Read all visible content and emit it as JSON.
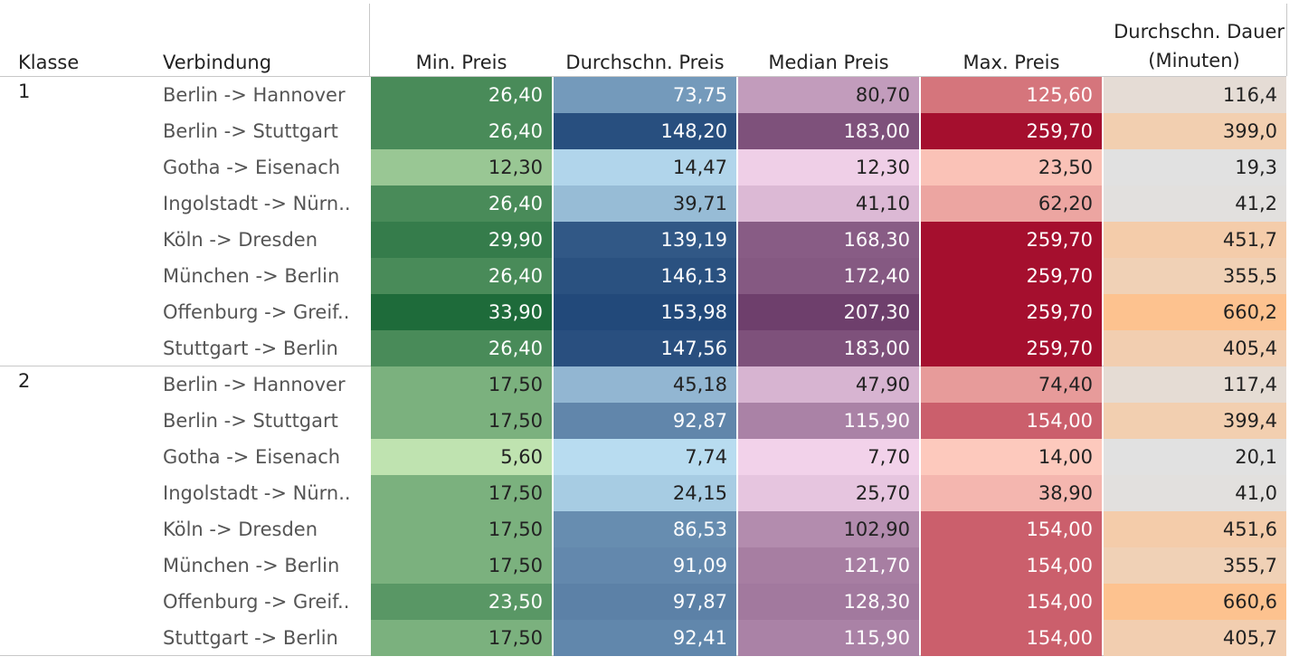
{
  "chart_data": {
    "type": "table",
    "columns": {
      "klasse": "Klasse",
      "verbindung": "Verbindung",
      "min": "Min. Preis",
      "avg": "Durchschn. Preis",
      "median": "Median Preis",
      "max": "Max. Preis",
      "dauer_line1": "Durchschn. Dauer",
      "dauer_line2": "(Minuten)"
    },
    "groups": [
      {
        "klasse": "1",
        "rows": [
          {
            "verbindung": "Berlin -> Hannover",
            "min": "26,40",
            "avg": "73,75",
            "median": "80,70",
            "max": "125,60",
            "dauer": "116,4"
          },
          {
            "verbindung": "Berlin -> Stuttgart",
            "min": "26,40",
            "avg": "148,20",
            "median": "183,00",
            "max": "259,70",
            "dauer": "399,0"
          },
          {
            "verbindung": "Gotha -> Eisenach",
            "min": "12,30",
            "avg": "14,47",
            "median": "12,30",
            "max": "23,50",
            "dauer": "19,3"
          },
          {
            "verbindung": "Ingolstadt -> Nürn..",
            "min": "26,40",
            "avg": "39,71",
            "median": "41,10",
            "max": "62,20",
            "dauer": "41,2"
          },
          {
            "verbindung": "Köln -> Dresden",
            "min": "29,90",
            "avg": "139,19",
            "median": "168,30",
            "max": "259,70",
            "dauer": "451,7"
          },
          {
            "verbindung": "München -> Berlin",
            "min": "26,40",
            "avg": "146,13",
            "median": "172,40",
            "max": "259,70",
            "dauer": "355,5"
          },
          {
            "verbindung": "Offenburg -> Greif..",
            "min": "33,90",
            "avg": "153,98",
            "median": "207,30",
            "max": "259,70",
            "dauer": "660,2"
          },
          {
            "verbindung": "Stuttgart -> Berlin",
            "min": "26,40",
            "avg": "147,56",
            "median": "183,00",
            "max": "259,70",
            "dauer": "405,4"
          }
        ]
      },
      {
        "klasse": "2",
        "rows": [
          {
            "verbindung": "Berlin -> Hannover",
            "min": "17,50",
            "avg": "45,18",
            "median": "47,90",
            "max": "74,40",
            "dauer": "117,4"
          },
          {
            "verbindung": "Berlin -> Stuttgart",
            "min": "17,50",
            "avg": "92,87",
            "median": "115,90",
            "max": "154,00",
            "dauer": "399,4"
          },
          {
            "verbindung": "Gotha -> Eisenach",
            "min": "5,60",
            "avg": "7,74",
            "median": "7,70",
            "max": "14,00",
            "dauer": "20,1"
          },
          {
            "verbindung": "Ingolstadt -> Nürn..",
            "min": "17,50",
            "avg": "24,15",
            "median": "25,70",
            "max": "38,90",
            "dauer": "41,0"
          },
          {
            "verbindung": "Köln -> Dresden",
            "min": "17,50",
            "avg": "86,53",
            "median": "102,90",
            "max": "154,00",
            "dauer": "451,6"
          },
          {
            "verbindung": "München -> Berlin",
            "min": "17,50",
            "avg": "91,09",
            "median": "121,70",
            "max": "154,00",
            "dauer": "355,7"
          },
          {
            "verbindung": "Offenburg -> Greif..",
            "min": "23,50",
            "avg": "97,87",
            "median": "128,30",
            "max": "154,00",
            "dauer": "660,6"
          },
          {
            "verbindung": "Stuttgart -> Berlin",
            "min": "17,50",
            "avg": "92,41",
            "median": "115,90",
            "max": "154,00",
            "dauer": "405,7"
          }
        ]
      }
    ],
    "color_scales": {
      "min": [
        "#bfe3b0",
        "#1e6b3a"
      ],
      "avg": [
        "#b8dcf0",
        "#22497a"
      ],
      "median": [
        "#f2d2ea",
        "#6e3f6c"
      ],
      "max": [
        "#fdc9bd",
        "#a50f2e"
      ],
      "dauer": [
        "#e1e1e1",
        "#fdc28f"
      ]
    }
  }
}
